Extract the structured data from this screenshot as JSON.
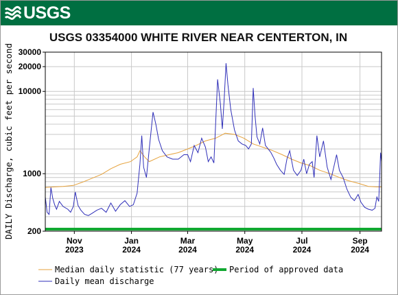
{
  "logo": {
    "text": "USGS"
  },
  "chart_data": {
    "type": "line",
    "title": "USGS 03354000 WHITE RIVER NEAR CENTERTON, IN",
    "ylabel": "DAILY Discharge, cubic feet per second",
    "xlabel": "",
    "yscale": "log",
    "ylim": [
      200,
      30000
    ],
    "xlim": [
      "2023-10-01",
      "2024-09-24"
    ],
    "grid": true,
    "legend_position": "bottom",
    "y_ticks": [
      200,
      1000,
      10000,
      20000,
      30000
    ],
    "y_tick_labels": [
      "200",
      "1000",
      "10000",
      "20000",
      "30000"
    ],
    "x_ticks": [
      {
        "date": "2023-11-01",
        "line1": "Nov",
        "line2": "2023"
      },
      {
        "date": "2024-01-01",
        "line1": "Jan",
        "line2": "2024"
      },
      {
        "date": "2024-03-01",
        "line1": "Mar",
        "line2": "2024"
      },
      {
        "date": "2024-05-01",
        "line1": "May",
        "line2": "2024"
      },
      {
        "date": "2024-07-01",
        "line1": "Jul",
        "line2": "2024"
      },
      {
        "date": "2024-09-01",
        "line1": "Sep",
        "line2": "2024"
      }
    ],
    "series": [
      {
        "name": "Median daily statistic (77 years)",
        "color": "#e6a23c",
        "points": [
          [
            "2023-10-01",
            680
          ],
          [
            "2023-10-10",
            690
          ],
          [
            "2023-10-20",
            700
          ],
          [
            "2023-10-31",
            720
          ],
          [
            "2023-11-10",
            790
          ],
          [
            "2023-11-20",
            880
          ],
          [
            "2023-11-30",
            980
          ],
          [
            "2023-12-10",
            1150
          ],
          [
            "2023-12-20",
            1300
          ],
          [
            "2023-12-31",
            1400
          ],
          [
            "2024-01-07",
            1600
          ],
          [
            "2024-01-10",
            1900
          ],
          [
            "2024-01-15",
            1600
          ],
          [
            "2024-01-20",
            1400
          ],
          [
            "2024-01-31",
            1600
          ],
          [
            "2024-02-10",
            1700
          ],
          [
            "2024-02-20",
            1800
          ],
          [
            "2024-03-01",
            2000
          ],
          [
            "2024-03-10",
            2200
          ],
          [
            "2024-03-20",
            2500
          ],
          [
            "2024-03-31",
            2700
          ],
          [
            "2024-04-10",
            3100
          ],
          [
            "2024-04-20",
            3000
          ],
          [
            "2024-04-30",
            2700
          ],
          [
            "2024-05-10",
            2300
          ],
          [
            "2024-05-20",
            2100
          ],
          [
            "2024-05-31",
            1900
          ],
          [
            "2024-06-10",
            1700
          ],
          [
            "2024-06-20",
            1500
          ],
          [
            "2024-06-30",
            1350
          ],
          [
            "2024-07-10",
            1250
          ],
          [
            "2024-07-20",
            1100
          ],
          [
            "2024-07-31",
            1000
          ],
          [
            "2024-08-10",
            900
          ],
          [
            "2024-08-20",
            820
          ],
          [
            "2024-08-31",
            760
          ],
          [
            "2024-09-10",
            700
          ],
          [
            "2024-09-20",
            690
          ],
          [
            "2024-09-24",
            690
          ]
        ]
      },
      {
        "name": "Daily mean discharge",
        "color": "#2e2eb8",
        "points": [
          [
            "2023-10-01",
            520
          ],
          [
            "2023-10-03",
            340
          ],
          [
            "2023-10-05",
            320
          ],
          [
            "2023-10-07",
            680
          ],
          [
            "2023-10-09",
            500
          ],
          [
            "2023-10-11",
            420
          ],
          [
            "2023-10-13",
            370
          ],
          [
            "2023-10-16",
            460
          ],
          [
            "2023-10-20",
            400
          ],
          [
            "2023-10-25",
            370
          ],
          [
            "2023-10-28",
            340
          ],
          [
            "2023-10-31",
            400
          ],
          [
            "2023-11-02",
            600
          ],
          [
            "2023-11-05",
            410
          ],
          [
            "2023-11-08",
            360
          ],
          [
            "2023-11-12",
            320
          ],
          [
            "2023-11-16",
            310
          ],
          [
            "2023-11-20",
            330
          ],
          [
            "2023-11-25",
            360
          ],
          [
            "2023-11-30",
            380
          ],
          [
            "2023-12-05",
            340
          ],
          [
            "2023-12-10",
            440
          ],
          [
            "2023-12-15",
            350
          ],
          [
            "2023-12-20",
            420
          ],
          [
            "2023-12-25",
            470
          ],
          [
            "2023-12-30",
            400
          ],
          [
            "2024-01-03",
            420
          ],
          [
            "2024-01-07",
            580
          ],
          [
            "2024-01-10",
            1300
          ],
          [
            "2024-01-12",
            2900
          ],
          [
            "2024-01-14",
            1200
          ],
          [
            "2024-01-17",
            900
          ],
          [
            "2024-01-20",
            2000
          ],
          [
            "2024-01-24",
            5600
          ],
          [
            "2024-01-27",
            4000
          ],
          [
            "2024-01-30",
            2600
          ],
          [
            "2024-02-03",
            1900
          ],
          [
            "2024-02-08",
            1600
          ],
          [
            "2024-02-14",
            1500
          ],
          [
            "2024-02-20",
            1500
          ],
          [
            "2024-02-26",
            1700
          ],
          [
            "2024-03-01",
            1700
          ],
          [
            "2024-03-04",
            1400
          ],
          [
            "2024-03-08",
            2200
          ],
          [
            "2024-03-12",
            1800
          ],
          [
            "2024-03-16",
            2700
          ],
          [
            "2024-03-20",
            2100
          ],
          [
            "2024-03-23",
            1400
          ],
          [
            "2024-03-26",
            1600
          ],
          [
            "2024-03-29",
            1350
          ],
          [
            "2024-04-02",
            14000
          ],
          [
            "2024-04-05",
            7000
          ],
          [
            "2024-04-07",
            3500
          ],
          [
            "2024-04-09",
            8000
          ],
          [
            "2024-04-11",
            22000
          ],
          [
            "2024-04-13",
            12000
          ],
          [
            "2024-04-16",
            6000
          ],
          [
            "2024-04-20",
            3400
          ],
          [
            "2024-04-24",
            2500
          ],
          [
            "2024-04-28",
            2300
          ],
          [
            "2024-05-02",
            2200
          ],
          [
            "2024-05-05",
            2000
          ],
          [
            "2024-05-08",
            2300
          ],
          [
            "2024-05-10",
            11000
          ],
          [
            "2024-05-12",
            5000
          ],
          [
            "2024-05-14",
            2800
          ],
          [
            "2024-05-17",
            2300
          ],
          [
            "2024-05-20",
            3600
          ],
          [
            "2024-05-23",
            2200
          ],
          [
            "2024-05-26",
            2000
          ],
          [
            "2024-05-29",
            1800
          ],
          [
            "2024-06-01",
            1550
          ],
          [
            "2024-06-04",
            1300
          ],
          [
            "2024-06-08",
            1100
          ],
          [
            "2024-06-12",
            980
          ],
          [
            "2024-06-15",
            1500
          ],
          [
            "2024-06-18",
            1900
          ],
          [
            "2024-06-22",
            1100
          ],
          [
            "2024-06-26",
            950
          ],
          [
            "2024-06-30",
            1100
          ],
          [
            "2024-07-03",
            1500
          ],
          [
            "2024-07-06",
            1000
          ],
          [
            "2024-07-09",
            1300
          ],
          [
            "2024-07-12",
            1400
          ],
          [
            "2024-07-14",
            900
          ],
          [
            "2024-07-17",
            2900
          ],
          [
            "2024-07-20",
            1600
          ],
          [
            "2024-07-24",
            2500
          ],
          [
            "2024-07-28",
            1200
          ],
          [
            "2024-08-01",
            850
          ],
          [
            "2024-08-04",
            1200
          ],
          [
            "2024-08-07",
            1700
          ],
          [
            "2024-08-10",
            1100
          ],
          [
            "2024-08-14",
            900
          ],
          [
            "2024-08-18",
            650
          ],
          [
            "2024-08-22",
            520
          ],
          [
            "2024-08-26",
            470
          ],
          [
            "2024-08-30",
            560
          ],
          [
            "2024-09-02",
            450
          ],
          [
            "2024-09-06",
            390
          ],
          [
            "2024-09-10",
            370
          ],
          [
            "2024-09-14",
            360
          ],
          [
            "2024-09-17",
            380
          ],
          [
            "2024-09-19",
            520
          ],
          [
            "2024-09-21",
            460
          ],
          [
            "2024-09-22",
            900
          ],
          [
            "2024-09-23",
            1800
          ],
          [
            "2024-09-24",
            1400
          ]
        ]
      }
    ],
    "approved_period": {
      "name": "Period of approved data",
      "color": "#11a831",
      "start": "2023-10-01",
      "end": "2024-09-24"
    },
    "legend": [
      {
        "label": "Median daily statistic (77 years)",
        "color": "#e6a23c"
      },
      {
        "label": "Period of approved data",
        "color": "#11a831"
      },
      {
        "label": "Daily mean discharge",
        "color": "#2e2eb8"
      }
    ]
  }
}
